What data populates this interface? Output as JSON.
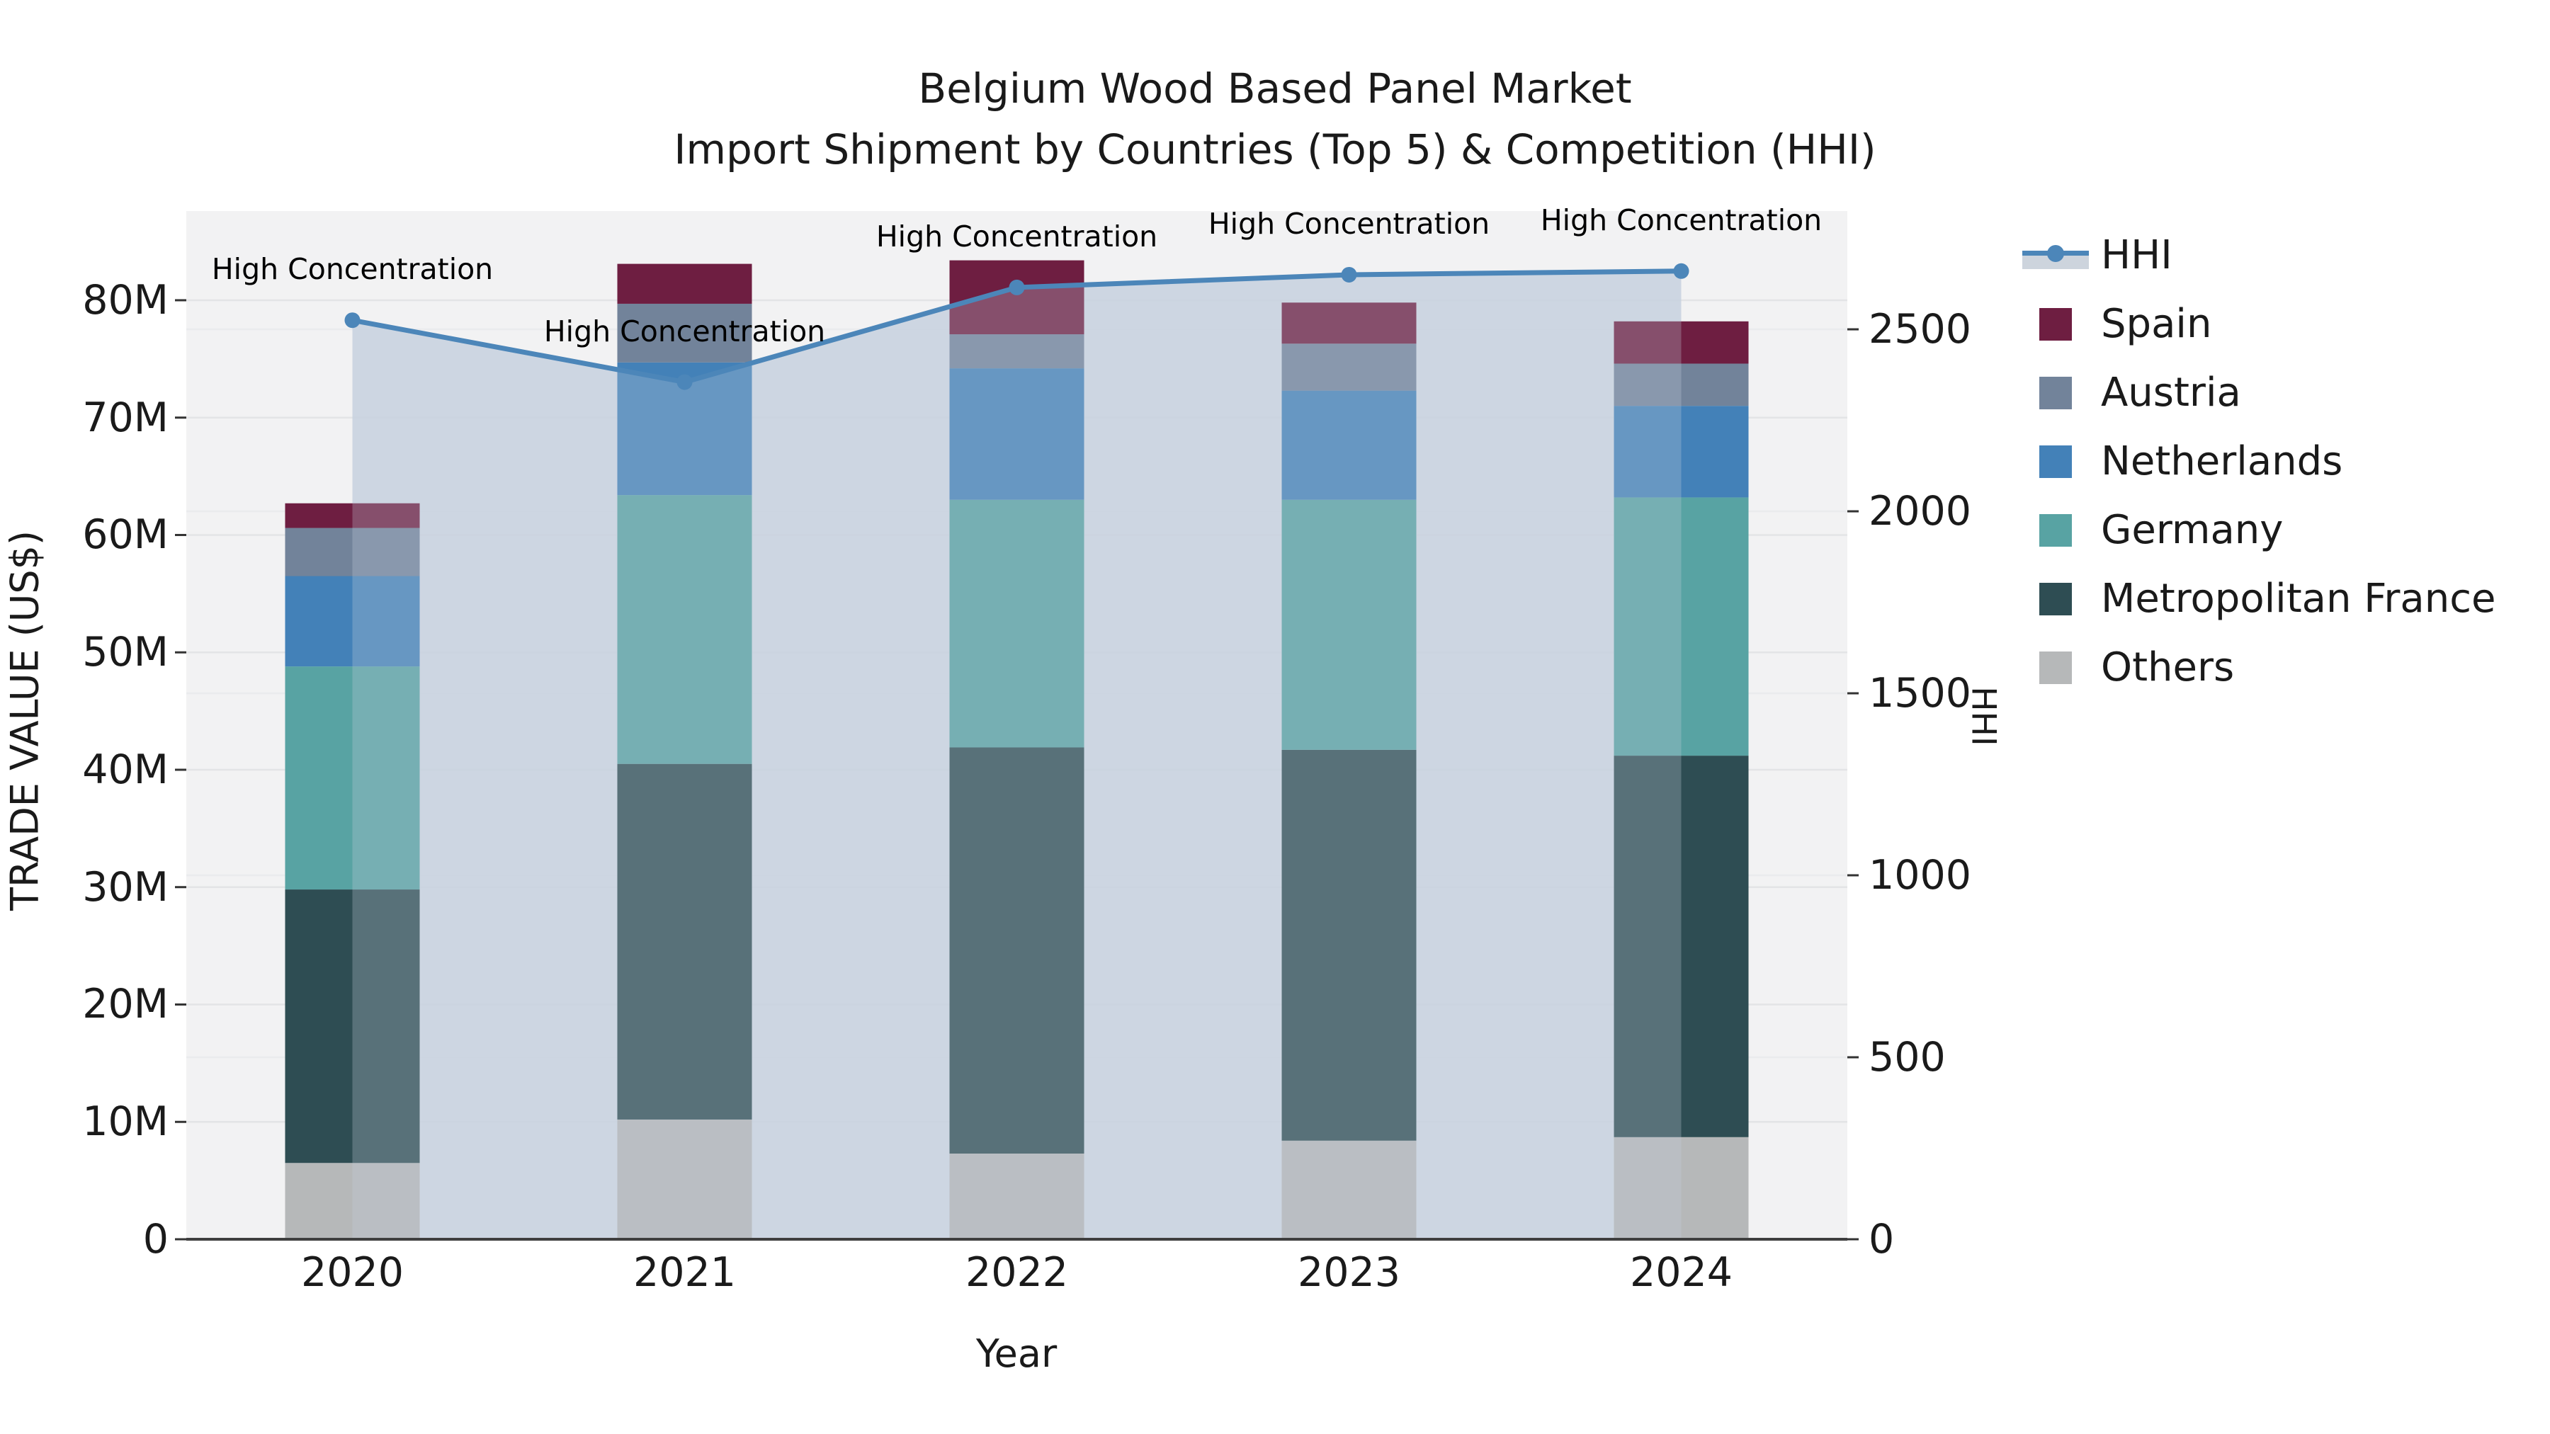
{
  "title": {
    "line1": "Belgium Wood Based Panel Market",
    "line2": "Import Shipment by Countries (Top 5) & Competition (HHI)"
  },
  "axes": {
    "x": {
      "label": "Year",
      "tick_labels": [
        "2020",
        "2021",
        "2022",
        "2023",
        "2024"
      ]
    },
    "y_left": {
      "label": "TRADE VALUE (US$)",
      "tick_labels": [
        "0",
        "10M",
        "20M",
        "30M",
        "40M",
        "50M",
        "60M",
        "70M",
        "80M"
      ],
      "tick_values_musd": [
        0,
        10,
        20,
        30,
        40,
        50,
        60,
        70,
        80
      ],
      "max_musd": 87.6
    },
    "y_right": {
      "label": "HHI",
      "tick_labels": [
        "0",
        "500",
        "1000",
        "1500",
        "2000",
        "2500"
      ],
      "tick_values": [
        0,
        500,
        1000,
        1500,
        2000,
        2500
      ],
      "max": 2825
    }
  },
  "legend": {
    "items": [
      {
        "label": "HHI",
        "type": "line",
        "color": "#4C86B9"
      },
      {
        "label": "Spain",
        "type": "swatch",
        "color": "#6E1E41"
      },
      {
        "label": "Austria",
        "type": "swatch",
        "color": "#72839A"
      },
      {
        "label": "Netherlands",
        "type": "swatch",
        "color": "#4381B8"
      },
      {
        "label": "Germany",
        "type": "swatch",
        "color": "#58A3A3"
      },
      {
        "label": "Metropolitan France",
        "type": "swatch",
        "color": "#2E4D53"
      },
      {
        "label": "Others",
        "type": "swatch",
        "color": "#B6B8B9"
      }
    ]
  },
  "chart_data": {
    "type": "bar",
    "subtype": "stacked bars with overlaid line on secondary axis",
    "categories": [
      "2020",
      "2021",
      "2022",
      "2023",
      "2024"
    ],
    "bar_value_unit": "million US$",
    "series": [
      {
        "name": "Others",
        "color": "#B6B8B9",
        "values": [
          6.5,
          10.2,
          7.3,
          8.4,
          8.7
        ]
      },
      {
        "name": "Metropolitan France",
        "color": "#2E4D53",
        "values": [
          23.3,
          30.3,
          34.6,
          33.3,
          32.5
        ]
      },
      {
        "name": "Germany",
        "color": "#58A3A3",
        "values": [
          19.0,
          22.9,
          21.1,
          21.3,
          22.0
        ]
      },
      {
        "name": "Netherlands",
        "color": "#4381B8",
        "values": [
          7.7,
          11.3,
          11.2,
          9.3,
          7.8
        ]
      },
      {
        "name": "Austria",
        "color": "#72839A",
        "values": [
          4.1,
          5.0,
          2.9,
          4.0,
          3.6
        ]
      },
      {
        "name": "Spain",
        "color": "#6E1E41",
        "values": [
          2.1,
          3.4,
          6.3,
          3.5,
          3.6
        ]
      }
    ],
    "bar_totals_musd": [
      62.7,
      83.1,
      83.4,
      79.8,
      78.2
    ],
    "line_series": {
      "name": "HHI",
      "axis": "right",
      "color": "#4C86B9",
      "has_area_fill": true,
      "values": [
        2525,
        2355,
        2615,
        2650,
        2660
      ]
    },
    "annotations": [
      "High Concentration",
      "High Concentration",
      "High Concentration",
      "High Concentration",
      "High Concentration"
    ],
    "title": "Belgium Wood Based Panel Market — Import Shipment by Countries (Top 5) & Competition (HHI)",
    "xlabel": "Year",
    "ylabel_left": "TRADE VALUE (US$)",
    "ylabel_right": "HHI",
    "ylim_left_musd": [
      0,
      87.6
    ],
    "ylim_right": [
      0,
      2825
    ],
    "grid": true,
    "legend_position": "right"
  },
  "colors": {
    "plot_background": "#F2F2F3",
    "figure_background": "#FFFFFF",
    "gridline_left_axis": "#E3E4E6",
    "gridline_right_axis": "#EAEBED",
    "area_fill": "#CAD3DF",
    "hhi_line": "#4C86B9",
    "bottom_spine": "#3F3F3F",
    "text": "#1A1A1A"
  }
}
